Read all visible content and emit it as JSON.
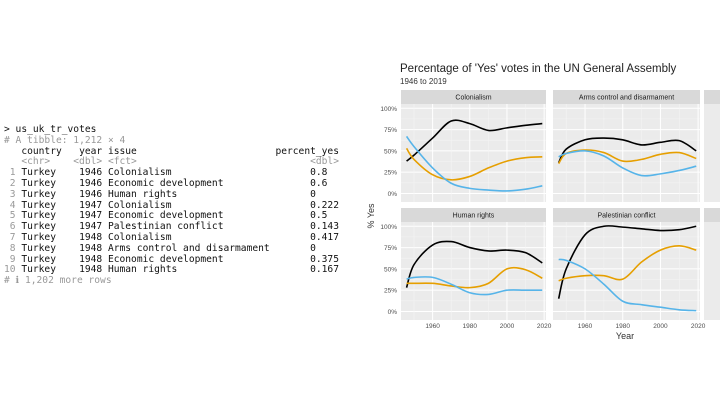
{
  "console": {
    "command": "> us_uk_tr_votes",
    "tibble_info": "# A tibble: 1,212 × 4",
    "headers": [
      "country",
      "year",
      "issue",
      "percent_yes"
    ],
    "types": [
      "<chr>",
      "<dbl>",
      "<fct>",
      "<dbl>"
    ],
    "rows": [
      [
        "1",
        "Turkey",
        "1946",
        "Colonialism",
        "0.8"
      ],
      [
        "2",
        "Turkey",
        "1946",
        "Economic development",
        "0.6"
      ],
      [
        "3",
        "Turkey",
        "1946",
        "Human rights",
        "0"
      ],
      [
        "4",
        "Turkey",
        "1947",
        "Colonialism",
        "0.222"
      ],
      [
        "5",
        "Turkey",
        "1947",
        "Economic development",
        "0.5"
      ],
      [
        "6",
        "Turkey",
        "1947",
        "Palestinian conflict",
        "0.143"
      ],
      [
        "7",
        "Turkey",
        "1948",
        "Colonialism",
        "0.417"
      ],
      [
        "8",
        "Turkey",
        "1948",
        "Arms control and disarmament",
        "0"
      ],
      [
        "9",
        "Turkey",
        "1948",
        "Economic development",
        "0.375"
      ],
      [
        "10",
        "Turkey",
        "1948",
        "Human rights",
        "0.167"
      ]
    ],
    "more_rows": "# ℹ 1,202 more rows"
  },
  "chart_data": {
    "type": "line",
    "title": "Percentage of 'Yes' votes in the UN General Assembly",
    "subtitle": "1946 to 2019",
    "xlabel": "Year",
    "ylabel": "% Yes",
    "xlim": [
      1943,
      2021
    ],
    "ylim": [
      -0.1,
      1.05
    ],
    "x_ticks": [
      "1960",
      "1980",
      "2000",
      "2020"
    ],
    "y_ticks": [
      "0%",
      "25%",
      "50%",
      "75%",
      "100%"
    ],
    "grid": true,
    "colors": {
      "black": "#000000",
      "orange": "#E69F00",
      "blue": "#56B4E9"
    },
    "x": [
      1946,
      1950,
      1960,
      1970,
      1980,
      1990,
      2000,
      2010,
      2019
    ],
    "panels": [
      {
        "label": "Colonialism",
        "series": [
          {
            "color": "black",
            "values": [
              0.38,
              0.45,
              0.65,
              0.85,
              0.82,
              0.74,
              0.77,
              0.8,
              0.82
            ]
          },
          {
            "color": "orange",
            "values": [
              0.53,
              0.4,
              0.22,
              0.16,
              0.2,
              0.3,
              0.38,
              0.42,
              0.43
            ]
          },
          {
            "color": "blue",
            "values": [
              0.67,
              0.55,
              0.3,
              0.12,
              0.06,
              0.04,
              0.03,
              0.05,
              0.09
            ]
          }
        ]
      },
      {
        "label": "Arms control and disarmament",
        "series": [
          {
            "color": "black",
            "values": [
              0.36,
              0.52,
              0.63,
              0.65,
              0.63,
              0.57,
              0.6,
              0.62,
              0.5
            ]
          },
          {
            "color": "orange",
            "values": [
              0.35,
              0.47,
              0.51,
              0.48,
              0.38,
              0.4,
              0.46,
              0.48,
              0.41
            ]
          },
          {
            "color": "blue",
            "values": [
              0.43,
              0.47,
              0.5,
              0.44,
              0.3,
              0.21,
              0.23,
              0.27,
              0.32
            ]
          }
        ]
      },
      {
        "label": "Human rights",
        "series": [
          {
            "color": "black",
            "values": [
              0.28,
              0.55,
              0.78,
              0.82,
              0.75,
              0.71,
              0.72,
              0.69,
              0.57
            ]
          },
          {
            "color": "orange",
            "values": [
              0.33,
              0.33,
              0.33,
              0.3,
              0.28,
              0.33,
              0.5,
              0.49,
              0.39
            ]
          },
          {
            "color": "blue",
            "values": [
              0.38,
              0.4,
              0.4,
              0.32,
              0.22,
              0.2,
              0.25,
              0.25,
              0.25
            ]
          }
        ]
      },
      {
        "label": "Palestinian conflict",
        "series": [
          {
            "color": "black",
            "values": [
              0.15,
              0.5,
              0.9,
              1.0,
              0.99,
              0.97,
              0.95,
              0.96,
              1.0
            ]
          },
          {
            "color": "orange",
            "values": [
              0.36,
              0.39,
              0.42,
              0.42,
              0.38,
              0.58,
              0.72,
              0.77,
              0.72
            ]
          },
          {
            "color": "blue",
            "values": [
              0.61,
              0.6,
              0.5,
              0.32,
              0.12,
              0.08,
              0.05,
              0.02,
              0.01
            ]
          }
        ]
      }
    ]
  }
}
